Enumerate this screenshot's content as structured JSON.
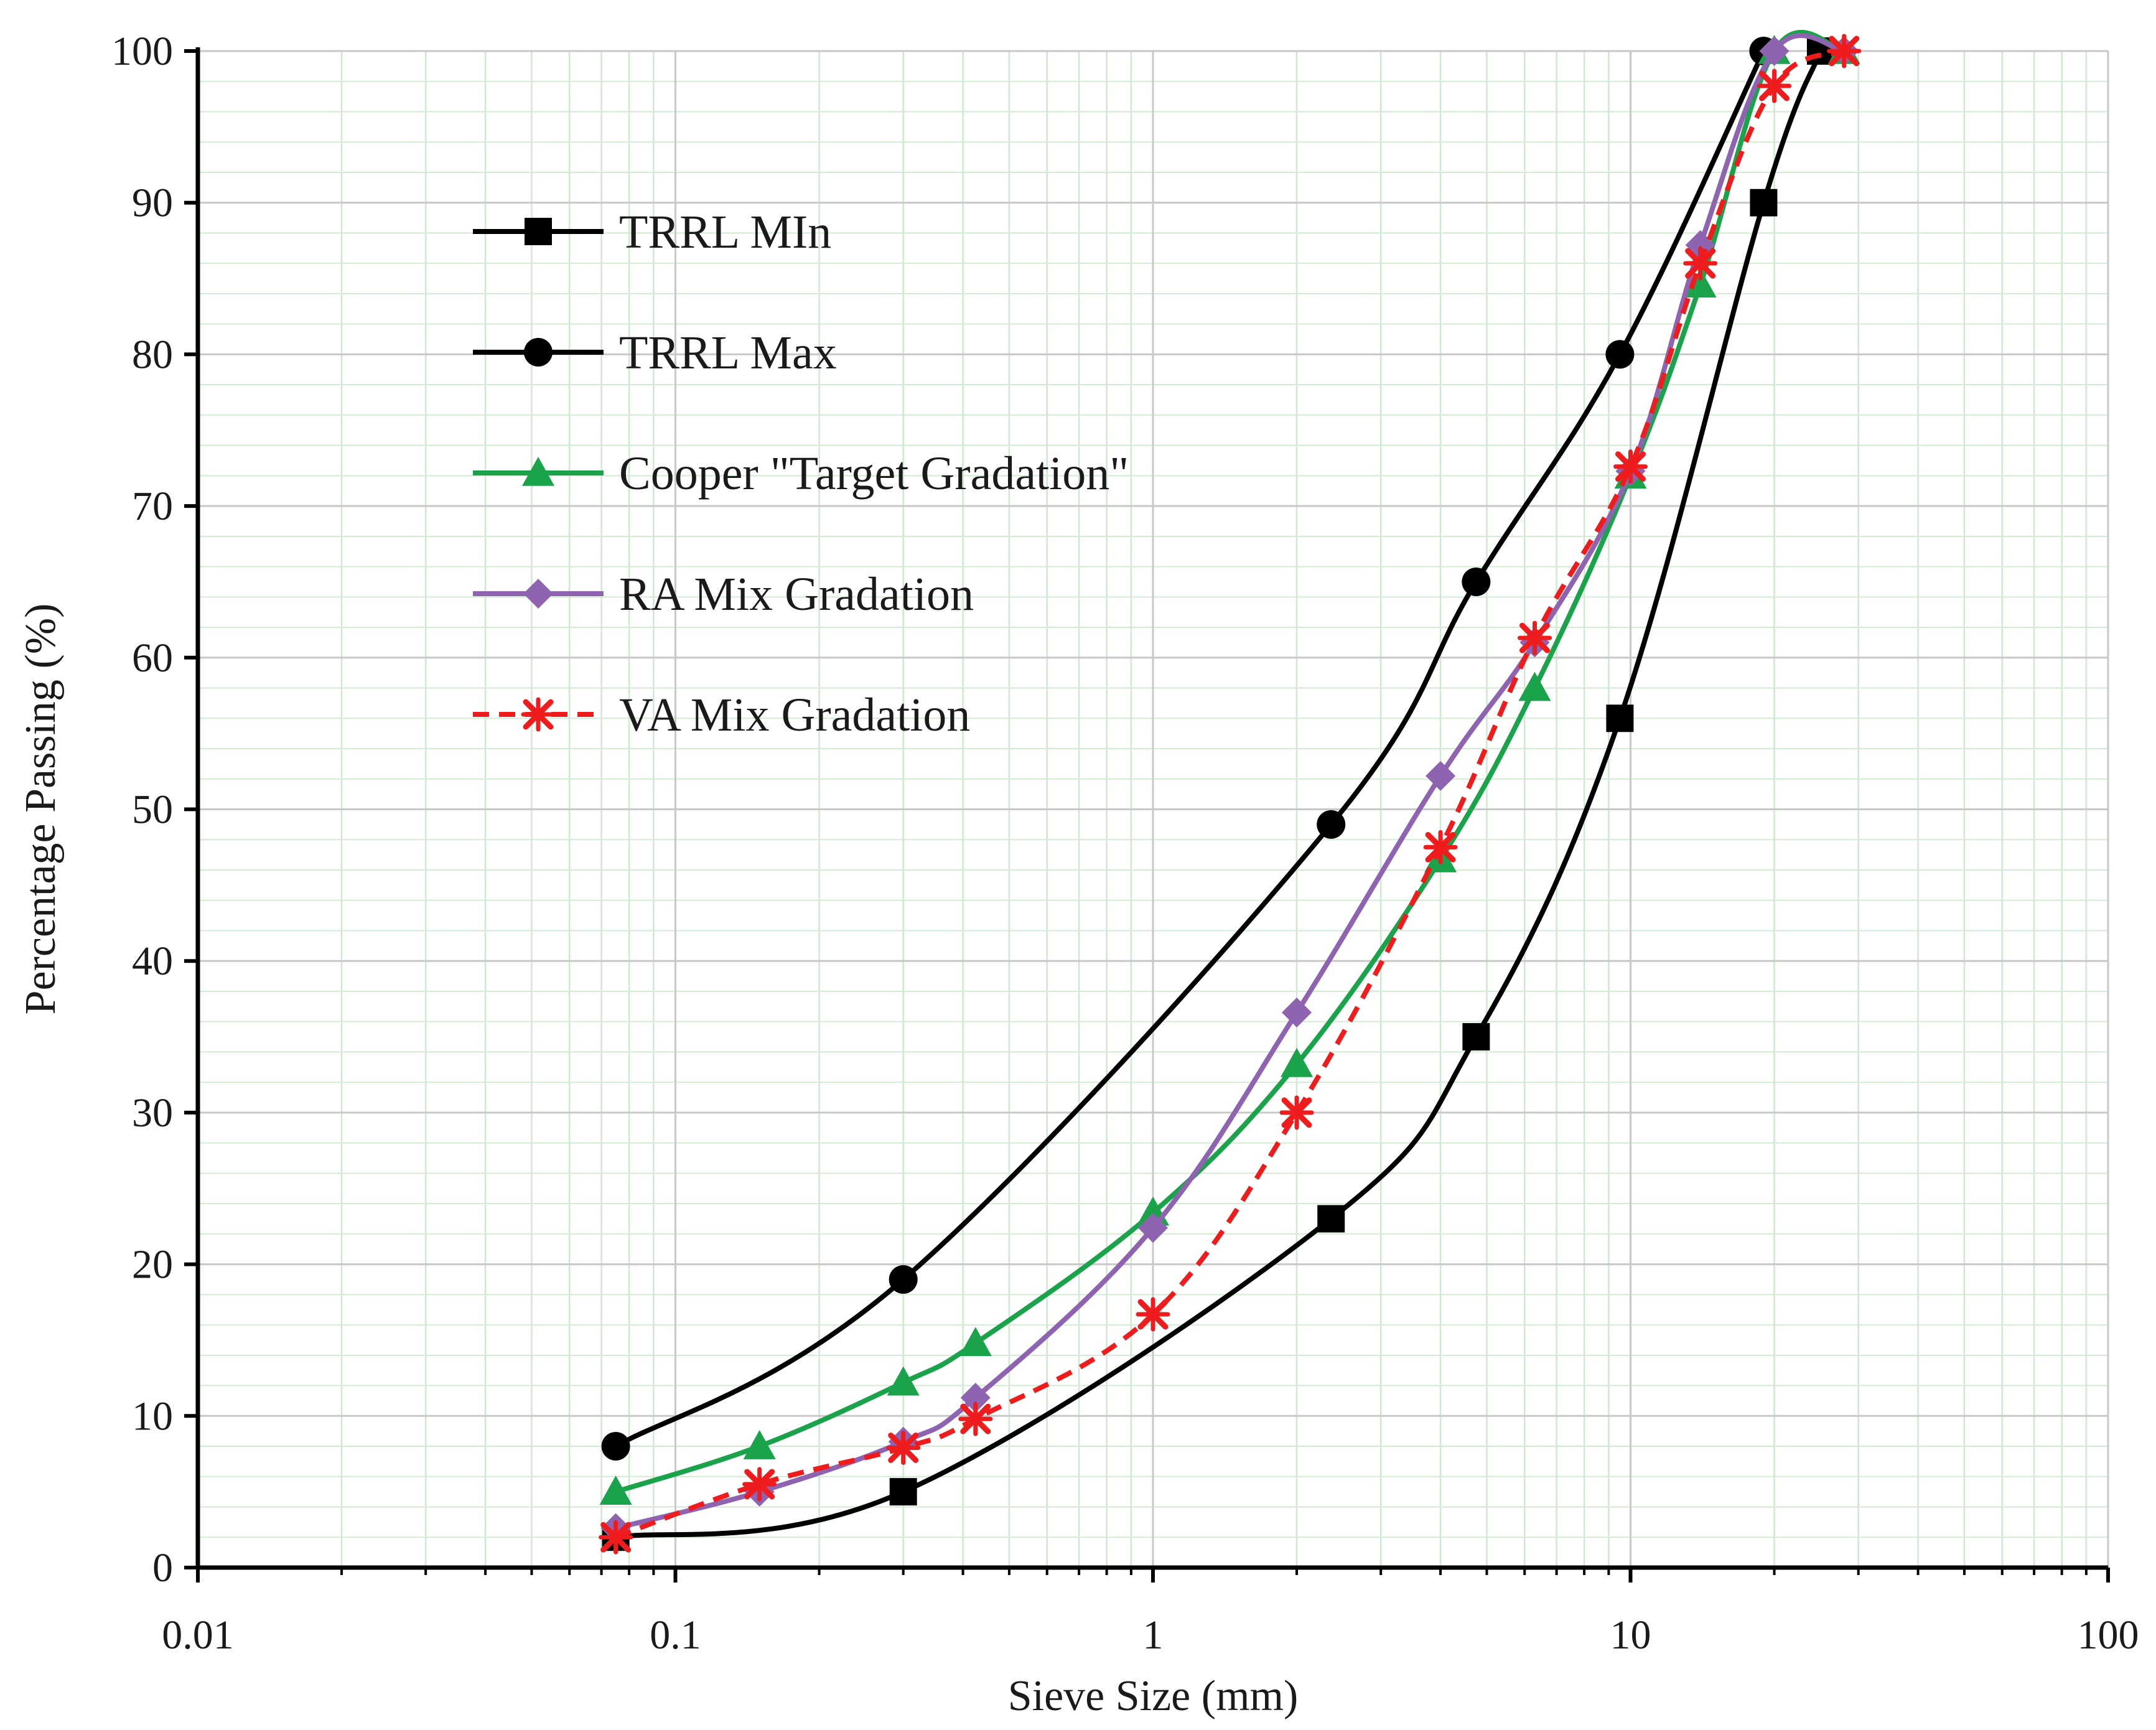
{
  "chart_data": {
    "type": "line",
    "xscale": "log",
    "xlabel": "Sieve Size (mm)",
    "ylabel": "Percentage Passing (%)",
    "xlim": [
      0.01,
      100
    ],
    "ylim": [
      0,
      100
    ],
    "grid": true,
    "legend_position": "top-left",
    "x_tick_labels": [
      "0.01",
      "0.1",
      "1",
      "10",
      "100"
    ],
    "x_tick_values": [
      0.01,
      0.1,
      1,
      10,
      100
    ],
    "y_tick_labels": [
      "0",
      "10",
      "20",
      "30",
      "40",
      "50",
      "60",
      "70",
      "80",
      "90",
      "100"
    ],
    "y_tick_values": [
      0,
      10,
      20,
      30,
      40,
      50,
      60,
      70,
      80,
      90,
      100
    ],
    "series": [
      {
        "name": "TRRL MIn",
        "color": "#000000",
        "marker": "square",
        "dashed": false,
        "x": [
          0.075,
          0.3,
          2.36,
          4.75,
          9.5,
          19,
          25
        ],
        "y": [
          2,
          5,
          23,
          35,
          56,
          90,
          100
        ]
      },
      {
        "name": "TRRL Max",
        "color": "#000000",
        "marker": "circle",
        "dashed": false,
        "x": [
          0.075,
          0.3,
          2.36,
          4.75,
          9.5,
          19
        ],
        "y": [
          8,
          19,
          49,
          65,
          80,
          100
        ]
      },
      {
        "name": "Cooper \"Target Gradation\"",
        "color": "#1aa34a",
        "marker": "triangle",
        "dashed": false,
        "x": [
          0.075,
          0.15,
          0.3,
          0.425,
          1,
          2,
          4,
          6.3,
          10,
          14,
          20,
          28
        ],
        "y": [
          5,
          8,
          12.2,
          14.8,
          23.4,
          33.2,
          46.7,
          58,
          72,
          84.6,
          100,
          100
        ]
      },
      {
        "name": "RA Mix Gradation",
        "color": "#8e63b0",
        "marker": "diamond",
        "dashed": false,
        "x": [
          0.075,
          0.15,
          0.3,
          0.425,
          1,
          2,
          4,
          6.3,
          10,
          14,
          20,
          28
        ],
        "y": [
          2.6,
          5,
          8.3,
          11.2,
          22.4,
          36.6,
          52.2,
          61,
          72.3,
          87.2,
          100,
          100
        ]
      },
      {
        "name": "VA Mix Gradation",
        "color": "#ee1c1c",
        "marker": "star",
        "dashed": true,
        "x": [
          0.075,
          0.15,
          0.3,
          0.425,
          1,
          2,
          4,
          6.3,
          10,
          14,
          20,
          28
        ],
        "y": [
          2,
          5.5,
          7.9,
          9.8,
          16.7,
          30,
          47.5,
          61.3,
          72.6,
          86,
          97.7,
          100
        ]
      }
    ]
  }
}
